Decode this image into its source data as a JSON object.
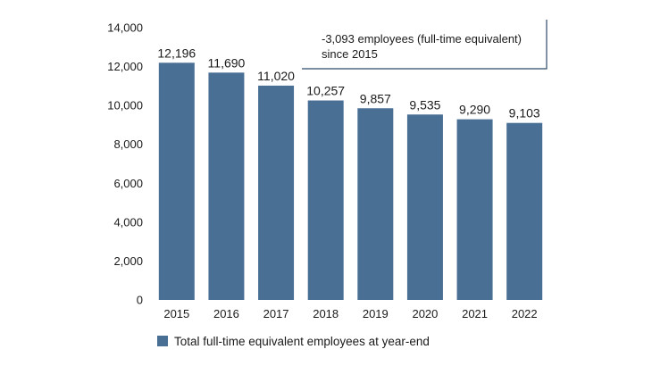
{
  "chart_data": {
    "type": "bar",
    "categories": [
      "2015",
      "2016",
      "2017",
      "2018",
      "2019",
      "2020",
      "2021",
      "2022"
    ],
    "series": [
      {
        "name": "Total full-time equivalent employees at year-end",
        "values": [
          12196,
          11690,
          11020,
          10257,
          9857,
          9535,
          9290,
          9103
        ],
        "labels": [
          "12,196",
          "11,690",
          "11,020",
          "10,257",
          "9,857",
          "9,535",
          "9,290",
          "9,103"
        ]
      }
    ],
    "ylim": [
      0,
      14000
    ],
    "yticks": [
      0,
      2000,
      4000,
      6000,
      8000,
      10000,
      12000,
      14000
    ],
    "ytick_labels": [
      "0",
      "2,000",
      "4,000",
      "6,000",
      "8,000",
      "10,000",
      "12,000",
      "14,000"
    ],
    "grid": false,
    "legend_position": "bottom-left",
    "annotation": {
      "line1": "-3,093 employees (full-time equivalent)",
      "line2": "since 2015"
    },
    "colors": {
      "bar": "#4a6f94",
      "annotation_border": "#2f4a6b"
    }
  }
}
